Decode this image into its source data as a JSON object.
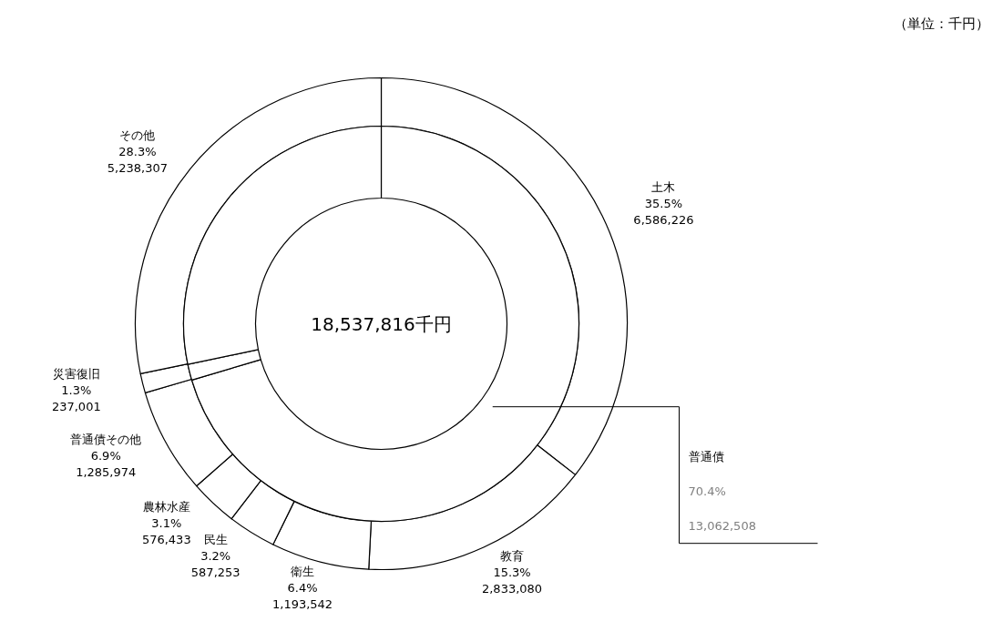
{
  "chart_data": {
    "type": "donut",
    "annotations": [
      "（単位：千円）",
      "18,537,816千円"
    ],
    "categories": [
      "土木",
      "教育",
      "衛生",
      "民生",
      "農林水産",
      "普通債その他",
      "災害復旧",
      "その他"
    ],
    "series": [
      {
        "values": [
          6586226,
          2833080,
          1193542,
          587253,
          576433,
          1285974,
          237001,
          5238307
        ],
        "colors": [
          "#ffffff",
          "#ffffff",
          "#ffffff",
          "#ffffff",
          "#ffffff",
          "#ffffff",
          "#ffffff",
          "#ffffff"
        ],
        "value_labels": [
          "35.5%\n6,586,226",
          "15.3%\n2,833,080",
          "6.4%\n1,193,542",
          "3.2%\n587,253",
          "3.1%\n576,433",
          "6.9%\n1,285,974",
          "1.3%\n237,001",
          "28.3%\n5,238,307"
        ]
      },
      {
        "values": [
          70.4,
          null,
          null,
          null,
          null,
          null,
          1.3,
          28.3
        ],
        "colors": [
          "#ffffff",
          null,
          null,
          null,
          null,
          null,
          "#ffffff",
          "#ffffff"
        ],
        "value_labels": [
          "普通債\n70.4%\n13,062,508",
          null,
          null,
          null,
          null,
          null,
          null,
          null
        ]
      }
    ]
  }
}
